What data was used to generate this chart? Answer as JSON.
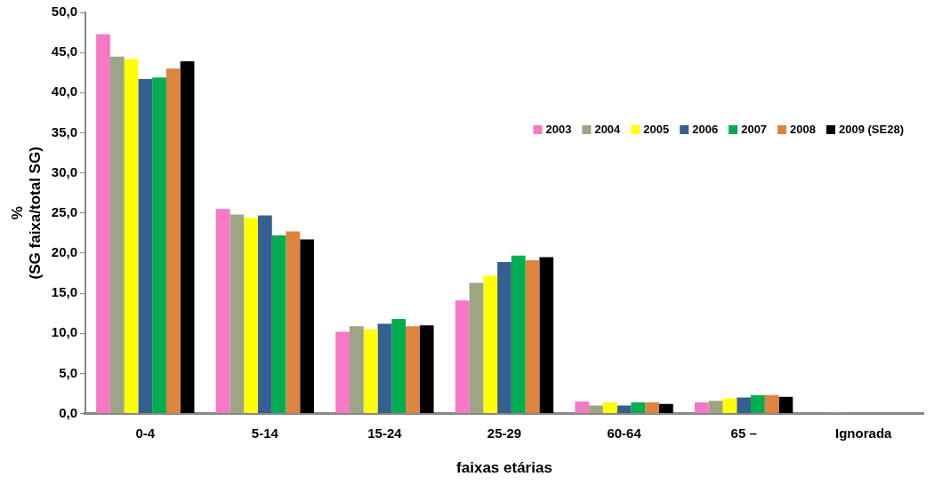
{
  "chart_data": {
    "type": "bar",
    "xlabel": "faixas etárias",
    "ylabel": "%\n(SG faixa/total SG)",
    "categories": [
      "0-4",
      "5-14",
      "15-24",
      "25-29",
      "60-64",
      "65 –",
      "Ignorada"
    ],
    "series": [
      {
        "name": "2003",
        "color": "#f778c4",
        "values": [
          47.3,
          25.5,
          10.2,
          14.1,
          1.5,
          1.4,
          0
        ]
      },
      {
        "name": "2004",
        "color": "#9ca584",
        "values": [
          44.5,
          24.8,
          10.9,
          16.3,
          1.0,
          1.6,
          0.2
        ]
      },
      {
        "name": "2005",
        "color": "#ffff00",
        "values": [
          44.2,
          24.4,
          10.5,
          17.2,
          1.4,
          1.9,
          0
        ]
      },
      {
        "name": "2006",
        "color": "#355f91",
        "values": [
          41.7,
          24.7,
          11.2,
          18.9,
          1.0,
          2.0,
          0
        ]
      },
      {
        "name": "2007",
        "color": "#00ae4f",
        "values": [
          41.9,
          22.2,
          11.8,
          19.7,
          1.4,
          2.3,
          0
        ]
      },
      {
        "name": "2008",
        "color": "#dd843f",
        "values": [
          43.0,
          22.7,
          10.9,
          19.1,
          1.4,
          2.3,
          0
        ]
      },
      {
        "name": "2009 (SE28)",
        "color": "#000000",
        "values": [
          43.9,
          21.7,
          11.0,
          19.5,
          1.2,
          2.1,
          0
        ]
      }
    ],
    "ylim": [
      0,
      50
    ],
    "yticks": [
      {
        "value": 0,
        "label": "0,0"
      },
      {
        "value": 5,
        "label": "5,0"
      },
      {
        "value": 10,
        "label": "10,0"
      },
      {
        "value": 15,
        "label": "15,0"
      },
      {
        "value": 20,
        "label": "20,0"
      },
      {
        "value": 25,
        "label": "25,0"
      },
      {
        "value": 30,
        "label": "30,0"
      },
      {
        "value": 35,
        "label": "35,0"
      },
      {
        "value": 40,
        "label": "40,0"
      },
      {
        "value": 45,
        "label": "45,0"
      },
      {
        "value": 50,
        "label": "50,0"
      }
    ],
    "grid": false,
    "legend": "top right"
  }
}
